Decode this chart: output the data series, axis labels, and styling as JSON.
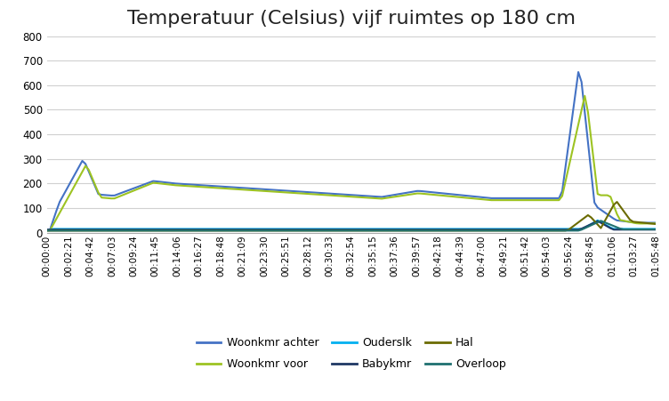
{
  "title": "Temperatuur (Celsius) vijf ruimtes op 180 cm",
  "ylim": [
    0,
    800
  ],
  "yticks": [
    0,
    100,
    200,
    300,
    400,
    500,
    600,
    700,
    800
  ],
  "series_labels": [
    "Woonkmr achter",
    "Woonkmr voor",
    "Ouderslk",
    "Babykmr",
    "Hal",
    "Overloop"
  ],
  "series_colors": [
    "#4472C4",
    "#9DC322",
    "#00B0F0",
    "#1F3864",
    "#6B6B00",
    "#1F7070"
  ],
  "line_widths": [
    1.5,
    1.5,
    1.5,
    1.5,
    1.5,
    1.5
  ],
  "background_color": "#FFFFFF",
  "grid_color": "#D0D0D0",
  "title_fontsize": 16,
  "tick_fontsize": 7.5,
  "total_seconds": 3948,
  "tick_interval_seconds": 141,
  "n_points": 190
}
